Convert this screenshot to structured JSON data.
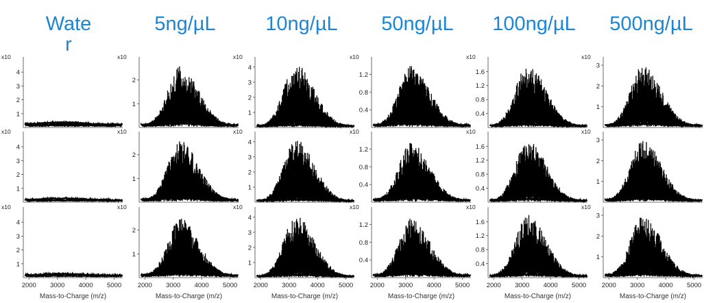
{
  "columns": [
    {
      "title": "Water",
      "multiplier": "x10",
      "yticks": [
        "1",
        "2",
        "3",
        "4"
      ],
      "ymax": 4.8
    },
    {
      "title": "5ng/µL",
      "multiplier": "x10",
      "yticks": [
        "1",
        "2"
      ],
      "ymax": 2.8
    },
    {
      "title": "10ng/µL",
      "multiplier": "x10",
      "yticks": [
        "1",
        "2",
        "3",
        "4"
      ],
      "ymax": 4.4
    },
    {
      "title": "50ng/µL",
      "multiplier": "x10",
      "yticks": [
        "0.4",
        "0.8",
        "1.2"
      ],
      "ymax": 1.5
    },
    {
      "title": "100ng/µL",
      "multiplier": "x10",
      "yticks": [
        "0.4",
        "0.8",
        "1.2",
        "1.6"
      ],
      "ymax": 1.9
    },
    {
      "title": "500ng/µL",
      "multiplier": "x10",
      "yticks": [
        "1",
        "2",
        "3"
      ],
      "ymax": 3.2
    }
  ],
  "chart_data": {
    "type": "line",
    "rows": 3,
    "columns": 6,
    "xlabel": "Mass-to-Charge (m/z)",
    "xticks": [
      "2000",
      "3000",
      "4000",
      "5000"
    ],
    "xlim": [
      1800,
      5300
    ],
    "series": [
      {
        "name": "Water",
        "peak_mz": 3150,
        "peak_intensity": [
          0.3,
          0.2,
          0.2
        ],
        "baseline": [
          0.2,
          0.15,
          0.15
        ],
        "ylim": [
          0,
          4.8
        ]
      },
      {
        "name": "5ng/µL",
        "peak_mz": 3250,
        "peak_intensity": [
          2.6,
          2.6,
          2.5
        ],
        "baseline": [
          0.1,
          0.1,
          0.1
        ],
        "ylim": [
          0,
          2.8
        ]
      },
      {
        "name": "10ng/µL",
        "peak_mz": 3250,
        "peak_intensity": [
          4.2,
          4.2,
          4.1
        ],
        "baseline": [
          0.1,
          0.1,
          0.1
        ],
        "ylim": [
          0,
          4.4
        ]
      },
      {
        "name": "50ng/µL",
        "peak_mz": 3200,
        "peak_intensity": [
          1.4,
          1.35,
          1.35
        ],
        "baseline": [
          0.05,
          0.05,
          0.05
        ],
        "ylim": [
          0,
          1.5
        ]
      },
      {
        "name": "100ng/µL",
        "peak_mz": 3200,
        "peak_intensity": [
          1.8,
          1.8,
          1.8
        ],
        "baseline": [
          0.05,
          0.05,
          0.05
        ],
        "ylim": [
          0,
          1.9
        ]
      },
      {
        "name": "500ng/µL",
        "peak_mz": 3200,
        "peak_intensity": [
          3.0,
          3.0,
          3.0
        ],
        "baseline": [
          0.1,
          0.1,
          0.1
        ],
        "ylim": [
          0,
          3.2
        ]
      }
    ]
  }
}
